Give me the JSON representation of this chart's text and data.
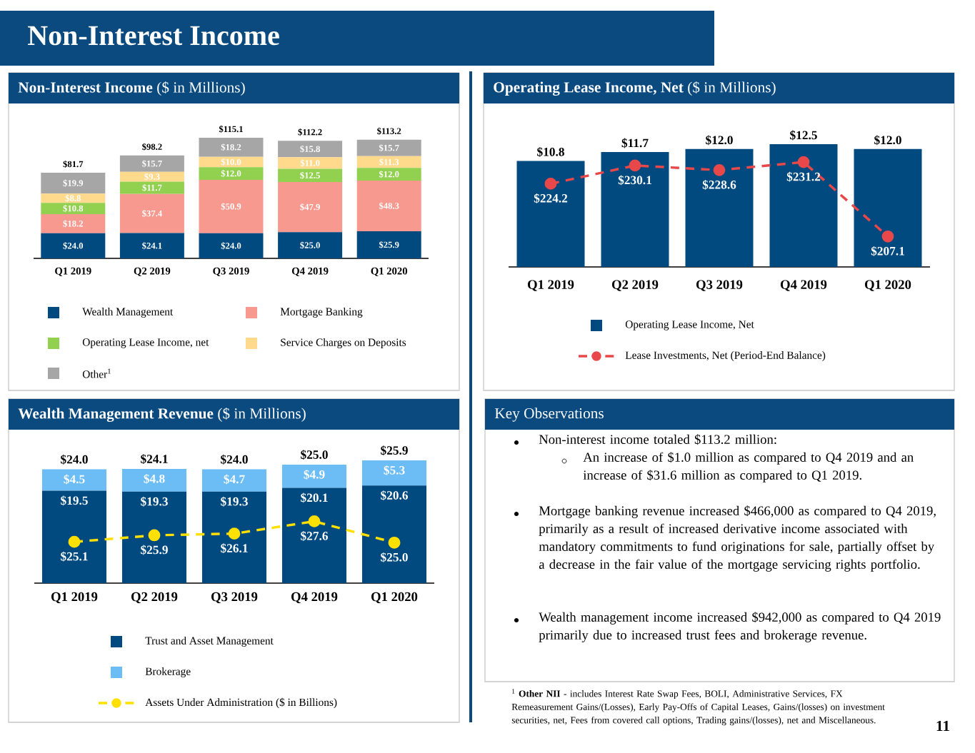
{
  "chart_data": [
    {
      "type": "bar",
      "stacked": true,
      "title": "**Non-Interest Income** ($ in Millions)",
      "annotations": [
        "Non-Interest Income"
      ],
      "categories": [
        "Q1 2019",
        "Q2 2019",
        "Q3 2019",
        "Q4 2019",
        "Q1 2020"
      ],
      "legend": "bottom",
      "series": [
        {
          "name": "Wealth Management",
          "color": "#004a80",
          "values": [
            24.0,
            24.1,
            24.0,
            25.0,
            25.9
          ],
          "value_labels": [
            "$24.0",
            "$24.1",
            "$24.0",
            "$25.0",
            "$25.9"
          ]
        },
        {
          "name": "Mortgage Banking",
          "color": "#f7998f",
          "values": [
            18.2,
            37.4,
            50.9,
            47.9,
            48.3
          ],
          "value_labels": [
            "$18.2",
            "$37.4",
            "$50.9",
            "$47.9",
            "$48.3"
          ]
        },
        {
          "name": "Operating Lease Income, net",
          "color": "#92d050",
          "values": [
            10.8,
            11.7,
            12.0,
            12.5,
            12.0
          ],
          "value_labels": [
            "$10.8",
            "$11.7",
            "$12.0",
            "$12.5",
            "$12.0"
          ]
        },
        {
          "name": "Service Charges on Deposits",
          "color": "#ffd98c",
          "values": [
            8.8,
            9.3,
            10.0,
            11.0,
            11.3
          ],
          "value_labels": [
            "$8.8",
            "$9.3",
            "$10.0",
            "$11.0",
            "$11.3"
          ]
        },
        {
          "name": "Other$^{1}$",
          "color": "#a6a6a6",
          "values": [
            19.9,
            15.7,
            18.2,
            15.8,
            15.7
          ],
          "value_labels": [
            "$19.9",
            "$15.7",
            "$18.2",
            "$15.8",
            "$15.7"
          ]
        }
      ],
      "totals": [
        "$81.7",
        "$98.2",
        "$115.1",
        "$112.2",
        "$113.2"
      ]
    },
    {
      "type": "bar",
      "title": "**Operating Lease Income, Net** ($ in Millions)",
      "categories": [
        "Q1 2019",
        "Q2 2019",
        "Q3 2019",
        "Q4 2019",
        "Q1 2020"
      ],
      "legend": "bottom",
      "series": [
        {
          "name": "Operating Lease Income, Net",
          "color": "#004a80",
          "values": [
            10.8,
            11.7,
            12.0,
            12.5,
            12.0
          ],
          "value_labels": [
            "$10.8",
            "$11.7",
            "$12.0",
            "$12.5",
            "$12.0"
          ]
        },
        {
          "name": "Lease Investments, Net (Period-End Balance)",
          "type": "line",
          "axis": "y2",
          "marker": "circle",
          "line_style": "dashed",
          "color": "#e8484a",
          "values": [
            224.2,
            230.1,
            228.6,
            231.2,
            207.1
          ],
          "value_labels": [
            "$224.2",
            "$230.1",
            "$228.6",
            "$231.2",
            "$207.1"
          ]
        }
      ]
    },
    {
      "type": "bar",
      "stacked": true,
      "title": "**Wealth Management Revenue** ($ in Millions)",
      "categories": [
        "Q1 2019",
        "Q2 2019",
        "Q3 2019",
        "Q4 2019",
        "Q1 2020"
      ],
      "legend": "bottom",
      "series": [
        {
          "name": "Trust and Asset Management",
          "color": "#004a80",
          "values": [
            19.5,
            19.3,
            19.3,
            20.1,
            20.6
          ],
          "value_labels": [
            "$19.5",
            "$19.3",
            "$19.3",
            "$20.1",
            "$20.6"
          ]
        },
        {
          "name": "Brokerage",
          "color": "#6cbcf5",
          "values": [
            4.5,
            4.8,
            4.7,
            4.9,
            5.3
          ],
          "value_labels": [
            "$4.5",
            "$4.8",
            "$4.7",
            "$4.9",
            "$5.3"
          ]
        },
        {
          "name": "Assets Under Administration ($ in Billions)",
          "type": "line",
          "axis": "y2",
          "marker": "circle",
          "line_style": "dashed",
          "color": "#ffe000",
          "values": [
            25.1,
            25.9,
            26.1,
            27.6,
            25.0
          ],
          "value_labels": [
            "$25.1",
            "$25.9",
            "$26.1",
            "$27.6",
            "$25.0"
          ]
        }
      ],
      "totals": [
        "$24.0",
        "$24.1",
        "$24.0",
        "$25.0",
        "$25.9"
      ]
    },
    {
      "type": "other",
      "title": "Key Observations",
      "annotations": [
        "Non-interest income totaled $113.2 million:",
        "An increase of $1.0 million as compared to Q4 2019 and an increase of $31.6 million as compared to Q1 2019.",
        "Mortgage banking revenue increased $466,000 as compared to Q4 2019, primarily as a result of increased derivative income associated with mandatory commitments to fund originations for sale, partially offset by a decrease in the fair value of the mortgage servicing rights portfolio.",
        "Wealth management income increased $942,000 as compared to Q4 2019 primarily due to increased trust fees and brokerage revenue.",
        "$^{1}$ **Other NII** - includes Interest Rate Swap Fees, BOLI, Administrative Services, FX Remeasurement Gains/(Losses), Early Pay-Offs of Capital Leases, Gains/(losses) on investment securities, net, Fees from covered call options, Trading gains/(losses), net and Miscellaneous.",
        "11"
      ]
    }
  ]
}
